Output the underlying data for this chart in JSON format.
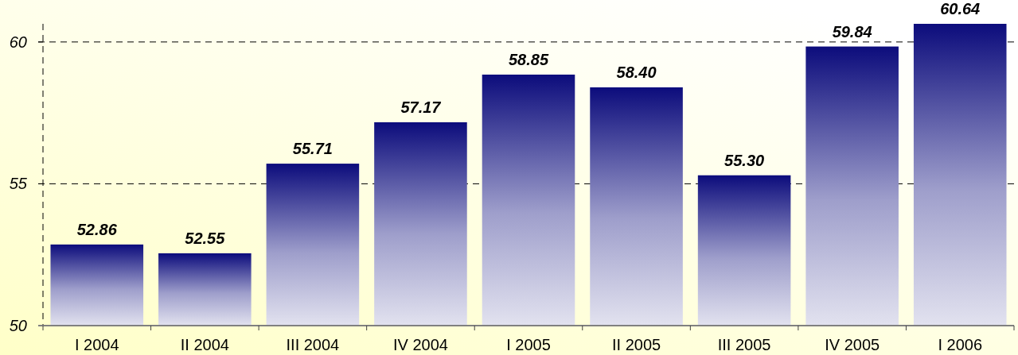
{
  "chart_data": {
    "type": "bar",
    "categories": [
      "I 2004",
      "II 2004",
      "III 2004",
      "IV 2004",
      "I 2005",
      "II 2005",
      "III 2005",
      "IV 2005",
      "I 2006"
    ],
    "values": [
      52.86,
      52.55,
      55.71,
      57.17,
      58.85,
      58.4,
      55.3,
      59.84,
      60.64
    ],
    "value_labels": [
      "52.86",
      "52.55",
      "55.71",
      "57.17",
      "58.85",
      "58.40",
      "55.30",
      "59.84",
      "60.64"
    ],
    "color": "#0c0c7c",
    "ylim": [
      50,
      60.64
    ],
    "yticks": [
      50,
      55,
      60
    ],
    "grid": "y"
  }
}
